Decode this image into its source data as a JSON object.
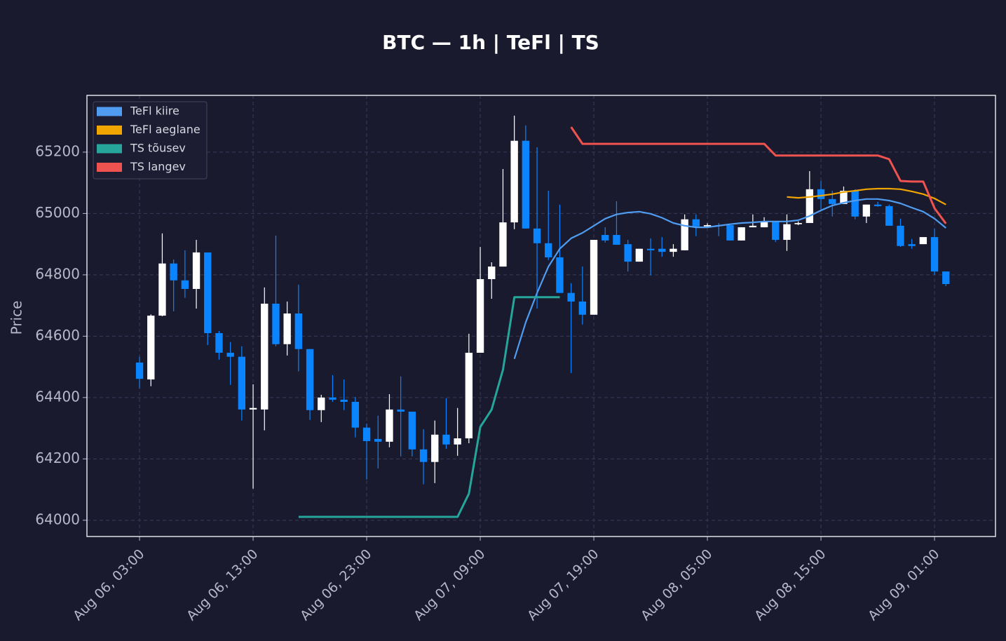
{
  "chart_data": {
    "type": "candlestick",
    "title": "BTC — 1h  |  TeFl  |  TS",
    "ylabel": "Price",
    "up_color": "#ffffff",
    "down_color": "#0a84ff",
    "grid": true,
    "legend": "upper left",
    "ylim": [
      63947,
      65385
    ],
    "yticks": [
      64000,
      64200,
      64400,
      64600,
      64800,
      65000,
      65200
    ],
    "xlim": [
      "Aug 05, 22:22",
      "Aug 09, 06:22"
    ],
    "xticks": [
      "Aug 06, 03:00",
      "Aug 06, 13:00",
      "Aug 06, 23:00",
      "Aug 07, 09:00",
      "Aug 07, 19:00",
      "Aug 08, 05:00",
      "Aug 08, 15:00",
      "Aug 09, 01:00"
    ],
    "x": [
      "Aug 06, 03:00",
      "Aug 06, 04:00",
      "Aug 06, 05:00",
      "Aug 06, 06:00",
      "Aug 06, 07:00",
      "Aug 06, 08:00",
      "Aug 06, 09:00",
      "Aug 06, 10:00",
      "Aug 06, 11:00",
      "Aug 06, 12:00",
      "Aug 06, 13:00",
      "Aug 06, 14:00",
      "Aug 06, 15:00",
      "Aug 06, 16:00",
      "Aug 06, 17:00",
      "Aug 06, 18:00",
      "Aug 06, 19:00",
      "Aug 06, 20:00",
      "Aug 06, 21:00",
      "Aug 06, 22:00",
      "Aug 06, 23:00",
      "Aug 07, 00:00",
      "Aug 07, 01:00",
      "Aug 07, 02:00",
      "Aug 07, 03:00",
      "Aug 07, 04:00",
      "Aug 07, 05:00",
      "Aug 07, 06:00",
      "Aug 07, 07:00",
      "Aug 07, 08:00",
      "Aug 07, 09:00",
      "Aug 07, 10:00",
      "Aug 07, 11:00",
      "Aug 07, 12:00",
      "Aug 07, 13:00",
      "Aug 07, 14:00",
      "Aug 07, 15:00",
      "Aug 07, 16:00",
      "Aug 07, 17:00",
      "Aug 07, 18:00",
      "Aug 07, 19:00",
      "Aug 07, 20:00",
      "Aug 07, 21:00",
      "Aug 07, 22:00",
      "Aug 07, 23:00",
      "Aug 08, 00:00",
      "Aug 08, 01:00",
      "Aug 08, 02:00",
      "Aug 08, 03:00",
      "Aug 08, 04:00",
      "Aug 08, 05:00",
      "Aug 08, 06:00",
      "Aug 08, 07:00",
      "Aug 08, 08:00",
      "Aug 08, 09:00",
      "Aug 08, 10:00",
      "Aug 08, 11:00",
      "Aug 08, 12:00",
      "Aug 08, 13:00",
      "Aug 08, 14:00",
      "Aug 08, 15:00",
      "Aug 08, 16:00",
      "Aug 08, 17:00",
      "Aug 08, 18:00",
      "Aug 08, 19:00",
      "Aug 08, 20:00",
      "Aug 08, 21:00",
      "Aug 08, 22:00",
      "Aug 08, 23:00",
      "Aug 09, 00:00",
      "Aug 09, 01:00",
      "Aug 09, 02:00"
    ],
    "open": [
      64514,
      64459,
      64667,
      64837,
      64782,
      64754,
      64873,
      64610,
      64546,
      64533,
      64361,
      64361,
      64706,
      64574,
      64674,
      64558,
      64359,
      64400,
      64393,
      64386,
      64302,
      64265,
      64256,
      64361,
      64354,
      64231,
      64190,
      64279,
      64247,
      64267,
      64546,
      64786,
      64827,
      64971,
      65237,
      64951,
      64903,
      64857,
      64741,
      64713,
      64670,
      64930,
      64930,
      64900,
      64843,
      64885,
      64885,
      64875,
      64880,
      64981,
      64958,
      64962,
      64962,
      64912,
      64955,
      64955,
      64974,
      64914,
      64965,
      64969,
      65079,
      65047,
      65031,
      65074,
      64990,
      65029,
      65024,
      64960,
      64900,
      64900,
      64923,
      64811
    ],
    "high": [
      64533,
      64671,
      64935,
      64850,
      64880,
      64914,
      64873,
      64617,
      64581,
      64567,
      64443,
      64759,
      64928,
      64713,
      64768,
      64558,
      64409,
      64473,
      64459,
      64402,
      64315,
      64341,
      64411,
      64469,
      64354,
      64297,
      64325,
      64398,
      64366,
      64608,
      64891,
      64841,
      65145,
      65319,
      65287,
      65216,
      65074,
      65029,
      64773,
      64827,
      64914,
      64955,
      65040,
      64914,
      64885,
      64919,
      64923,
      64900,
      64997,
      64997,
      64968,
      64969,
      64962,
      64955,
      64997,
      64988,
      64974,
      64997,
      64974,
      65138,
      65106,
      65074,
      65088,
      65079,
      65029,
      65038,
      65029,
      64983,
      64917,
      64923,
      64951,
      64811
    ],
    "low": [
      64430,
      64437,
      64665,
      64681,
      64725,
      64690,
      64571,
      64523,
      64441,
      64325,
      64103,
      64293,
      64567,
      64537,
      64485,
      64327,
      64320,
      64386,
      64359,
      64270,
      64133,
      64169,
      64238,
      64208,
      64208,
      64117,
      64121,
      64233,
      64210,
      64251,
      64546,
      64722,
      64827,
      64949,
      64951,
      64690,
      64848,
      64741,
      64480,
      64638,
      64670,
      64905,
      64898,
      64811,
      64843,
      64798,
      64859,
      64859,
      64880,
      64926,
      64955,
      64926,
      64912,
      64912,
      64955,
      64955,
      64907,
      64878,
      64962,
      64969,
      65013,
      64990,
      65031,
      64981,
      64969,
      65022,
      64960,
      64891,
      64885,
      64900,
      64800,
      64763
    ],
    "close": [
      64461,
      64667,
      64837,
      64782,
      64754,
      64873,
      64610,
      64546,
      64533,
      64361,
      64366,
      64706,
      64574,
      64674,
      64558,
      64359,
      64400,
      64393,
      64386,
      64302,
      64258,
      64256,
      64361,
      64354,
      64231,
      64190,
      64279,
      64247,
      64267,
      64546,
      64786,
      64827,
      64971,
      65237,
      64951,
      64903,
      64857,
      64741,
      64713,
      64670,
      64914,
      64912,
      64898,
      64843,
      64885,
      64880,
      64875,
      64885,
      64981,
      64958,
      64962,
      64960,
      64912,
      64955,
      64960,
      64974,
      64914,
      64965,
      64969,
      65079,
      65047,
      65031,
      65074,
      64990,
      65029,
      65024,
      64960,
      64894,
      64894,
      64923,
      64811,
      64770
    ],
    "series": [
      {
        "name": "TeFl kiire",
        "color": "#4f9cf0",
        "values": [
          null,
          null,
          null,
          null,
          null,
          null,
          null,
          null,
          null,
          null,
          null,
          null,
          null,
          null,
          null,
          null,
          null,
          null,
          null,
          null,
          null,
          null,
          null,
          null,
          null,
          null,
          null,
          null,
          null,
          null,
          null,
          null,
          null,
          64526,
          64645,
          64741,
          64827,
          64885,
          64919,
          64937,
          64960,
          64983,
          64997,
          65003,
          65006,
          64999,
          64986,
          64969,
          64960,
          64955,
          64955,
          64960,
          64965,
          64969,
          64971,
          64974,
          64974,
          64974,
          64978,
          64992,
          65010,
          65026,
          65035,
          65042,
          65047,
          65047,
          65042,
          65033,
          65019,
          65006,
          64983,
          64953
        ]
      },
      {
        "name": "TeFl aeglane",
        "color": "#f0a500",
        "values": [
          null,
          null,
          null,
          null,
          null,
          null,
          null,
          null,
          null,
          null,
          null,
          null,
          null,
          null,
          null,
          null,
          null,
          null,
          null,
          null,
          null,
          null,
          null,
          null,
          null,
          null,
          null,
          null,
          null,
          null,
          null,
          null,
          null,
          null,
          null,
          null,
          null,
          null,
          null,
          null,
          null,
          null,
          null,
          null,
          null,
          null,
          null,
          null,
          null,
          null,
          null,
          null,
          null,
          null,
          null,
          null,
          null,
          65054,
          65051,
          65054,
          65058,
          65063,
          65070,
          65074,
          65079,
          65081,
          65081,
          65079,
          65072,
          65063,
          65049,
          65029
        ]
      },
      {
        "name": "TS tõusev",
        "color": "#26a69a",
        "values": [
          null,
          null,
          null,
          null,
          null,
          null,
          null,
          null,
          null,
          null,
          null,
          null,
          null,
          null,
          64011,
          64011,
          64011,
          64011,
          64011,
          64011,
          64011,
          64011,
          64011,
          64011,
          64011,
          64011,
          64011,
          64011,
          64011,
          64087,
          64304,
          64361,
          64491,
          64727,
          64727,
          64727,
          64727,
          64727,
          null,
          null,
          null,
          null,
          null,
          null,
          null,
          null,
          null,
          null,
          null,
          null,
          null,
          null,
          null,
          null,
          null,
          null,
          null,
          null,
          null,
          null,
          null,
          null,
          null,
          null,
          null,
          null,
          null,
          null,
          null,
          null,
          null,
          null
        ]
      },
      {
        "name": "TS langev",
        "color": "#ef5350",
        "values": [
          null,
          null,
          null,
          null,
          null,
          null,
          null,
          null,
          null,
          null,
          null,
          null,
          null,
          null,
          null,
          null,
          null,
          null,
          null,
          null,
          null,
          null,
          null,
          null,
          null,
          null,
          null,
          null,
          null,
          null,
          null,
          null,
          null,
          null,
          null,
          null,
          null,
          null,
          65282,
          65227,
          65227,
          65227,
          65227,
          65227,
          65227,
          65227,
          65227,
          65227,
          65227,
          65227,
          65227,
          65227,
          65227,
          65227,
          65227,
          65227,
          65189,
          65189,
          65189,
          65189,
          65189,
          65189,
          65189,
          65189,
          65189,
          65189,
          65177,
          65106,
          65104,
          65104,
          65017,
          64967
        ]
      }
    ]
  }
}
